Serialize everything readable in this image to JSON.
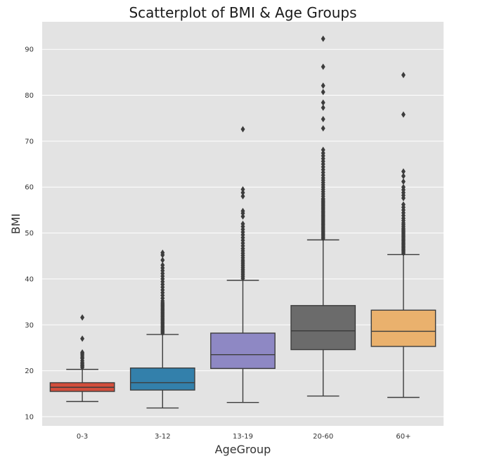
{
  "chart_data": {
    "type": "box",
    "title": "Scatterplot of BMI & Age Groups",
    "xlabel": "AgeGroup",
    "ylabel": "BMI",
    "ylim": [
      8,
      96
    ],
    "yticks": [
      10,
      20,
      30,
      40,
      50,
      60,
      70,
      80,
      90
    ],
    "grid": true,
    "categories": [
      "0-3",
      "3-12",
      "13-19",
      "20-60",
      "60+"
    ],
    "boxes": [
      {
        "category": "0-3",
        "color": "#d24e3c",
        "whisker_low": 13.3,
        "q1": 15.5,
        "median": 16.4,
        "q3": 17.4,
        "whisker_high": 20.3,
        "outliers": [
          20.7,
          21.0,
          21.2,
          21.5,
          21.8,
          22.2,
          22.7,
          23.0,
          23.4,
          23.7,
          24.0,
          27.0,
          31.6
        ]
      },
      {
        "category": "3-12",
        "color": "#3380ab",
        "whisker_low": 11.9,
        "q1": 15.8,
        "median": 17.4,
        "q3": 20.6,
        "whisker_high": 27.9,
        "outliers": [
          28.2,
          28.5,
          28.8,
          29.1,
          29.4,
          29.7,
          30.0,
          30.3,
          30.6,
          30.9,
          31.2,
          31.5,
          31.8,
          32.1,
          32.4,
          32.7,
          33.0,
          33.3,
          33.6,
          33.9,
          34.2,
          34.5,
          34.8,
          35.2,
          35.8,
          36.4,
          37.0,
          37.6,
          38.2,
          38.8,
          39.4,
          40.0,
          40.6,
          41.2,
          41.8,
          42.4,
          43.0,
          44.1,
          45.2,
          45.7
        ]
      },
      {
        "category": "13-19",
        "color": "#8e88c4",
        "whisker_low": 13.1,
        "q1": 20.5,
        "median": 23.5,
        "q3": 28.2,
        "whisker_high": 39.7,
        "outliers": [
          40.1,
          40.5,
          40.9,
          41.3,
          41.7,
          42.1,
          42.5,
          42.9,
          43.3,
          43.7,
          44.1,
          44.6,
          45.1,
          45.6,
          46.1,
          46.6,
          47.2,
          47.8,
          48.4,
          49.0,
          49.6,
          50.2,
          50.8,
          51.4,
          52.0,
          53.6,
          54.3,
          54.8,
          58.0,
          58.8,
          59.5,
          72.6
        ]
      },
      {
        "category": "20-60",
        "color": "#6b6b6b",
        "whisker_low": 14.5,
        "q1": 24.6,
        "median": 28.7,
        "q3": 34.2,
        "whisker_high": 48.5,
        "outliers": [
          48.8,
          49.1,
          49.4,
          49.7,
          50.0,
          50.3,
          50.6,
          50.9,
          51.2,
          51.5,
          51.8,
          52.1,
          52.4,
          52.7,
          53.0,
          53.3,
          53.6,
          53.9,
          54.2,
          54.5,
          54.8,
          55.1,
          55.4,
          55.7,
          56.0,
          56.3,
          56.6,
          56.9,
          57.2,
          57.5,
          58.0,
          58.5,
          59.0,
          59.5,
          60.0,
          60.5,
          61.0,
          61.5,
          62.0,
          62.6,
          63.2,
          63.8,
          64.4,
          65.0,
          65.6,
          66.2,
          66.8,
          67.4,
          68.1,
          72.8,
          74.8,
          77.3,
          78.4,
          80.7,
          82.1,
          86.2,
          92.3
        ]
      },
      {
        "category": "60+",
        "color": "#eab16d",
        "whisker_low": 14.2,
        "q1": 25.3,
        "median": 28.6,
        "q3": 33.2,
        "whisker_high": 45.3,
        "outliers": [
          45.6,
          45.9,
          46.2,
          46.5,
          46.8,
          47.1,
          47.4,
          47.7,
          48.0,
          48.3,
          48.6,
          48.9,
          49.2,
          49.5,
          49.8,
          50.1,
          50.4,
          50.7,
          51.0,
          51.4,
          51.8,
          52.2,
          52.7,
          53.2,
          53.8,
          54.4,
          55.0,
          55.6,
          56.2,
          57.6,
          58.2,
          58.8,
          59.4,
          60.0,
          61.2,
          62.4,
          63.4,
          75.8,
          84.4
        ]
      }
    ]
  }
}
